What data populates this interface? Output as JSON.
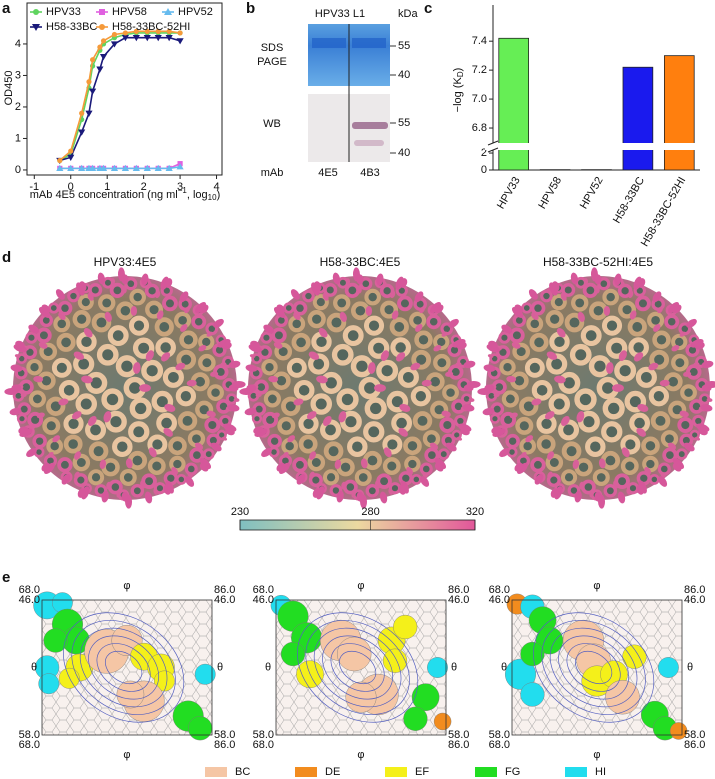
{
  "chart_data": [
    {
      "type": "line",
      "panel_label": "a",
      "xlabel": [
        "mAb 4E5 concentration (ng ml",
        "−1",
        ", log",
        "10",
        ")"
      ],
      "ylabel": "OD450",
      "x": [
        -0.3,
        0,
        0.3,
        0.5,
        0.6,
        0.8,
        0.9,
        1.2,
        1.5,
        1.8,
        2.1,
        2.4,
        2.7,
        3.0
      ],
      "xlim": [
        -1.2,
        4.15
      ],
      "xticks": [
        -1,
        0,
        1,
        2,
        3,
        4
      ],
      "ylim": [
        -0.16,
        5.3
      ],
      "yticks": [
        0,
        1,
        2,
        3,
        4
      ],
      "series": [
        {
          "name": "HPV33",
          "color": "#5fd45f",
          "marker": "circle",
          "values": [
            0.3,
            0.5,
            1.6,
            2.6,
            3.3,
            3.8,
            4.0,
            4.2,
            4.3,
            4.35,
            4.35,
            4.35,
            4.35,
            4.35
          ]
        },
        {
          "name": "HPV58",
          "color": "#e060e0",
          "marker": "square",
          "values": [
            0.05,
            0.05,
            0.05,
            0.05,
            0.05,
            0.05,
            0.05,
            0.05,
            0.05,
            0.05,
            0.05,
            0.05,
            0.05,
            0.2
          ]
        },
        {
          "name": "HPV52",
          "color": "#66bbee",
          "marker": "triangle",
          "values": [
            0.05,
            0.05,
            0.05,
            0.05,
            0.05,
            0.05,
            0.05,
            0.05,
            0.05,
            0.05,
            0.05,
            0.05,
            0.05,
            0.1
          ]
        },
        {
          "name": "H58-33BC",
          "color": "#1a1a7a",
          "marker": "triangle-down",
          "values": [
            0.3,
            0.4,
            1.2,
            1.8,
            2.5,
            3.2,
            3.6,
            4.0,
            4.2,
            4.2,
            4.2,
            4.2,
            4.2,
            4.1
          ]
        },
        {
          "name": "H58-33BC-52HI",
          "color": "#f59a3a",
          "marker": "circle",
          "values": [
            0.3,
            0.6,
            1.8,
            2.8,
            3.5,
            3.9,
            4.1,
            4.3,
            4.35,
            4.4,
            4.4,
            4.4,
            4.4,
            4.35
          ]
        }
      ]
    },
    {
      "type": "bar",
      "panel_label": "c",
      "ylabel": [
        "−log (K",
        "D",
        ")"
      ],
      "categories": [
        "HPV33",
        "HPV58",
        "HPV52",
        "H58-33BC",
        "H58-33BC-52HI"
      ],
      "values": [
        7.42,
        0.04,
        0.04,
        7.22,
        7.3
      ],
      "colors": [
        "#66ee55",
        "#e65ce6",
        "#55bbee",
        "#1a1aee",
        "#ff7f0e"
      ],
      "ylim": [
        0,
        7.65
      ],
      "axis_break": [
        2.3,
        6.7
      ],
      "yticks": [
        0,
        2,
        6.8,
        {
          "value": 7,
          "label": "7.0"
        },
        7.2,
        7.4
      ]
    }
  ],
  "panels": {
    "b": {
      "letter": "b",
      "title": "HPV33 L1",
      "unit": "kDa",
      "sds": [
        "SDS",
        "PAGE"
      ],
      "wb": "WB",
      "sds_markers": [
        55,
        40
      ],
      "wb_markers": [
        55,
        40
      ],
      "lane_label": "mAb",
      "lanes": [
        "4E5",
        "4B3"
      ]
    },
    "d": {
      "letter": "d",
      "titles": [
        "HPV33:4E5",
        "H58-33BC:4E5",
        "H58-33BC-52HI:4E5"
      ],
      "colorbar": {
        "ticks": [
          230,
          280,
          320
        ]
      }
    },
    "e": {
      "letter": "e",
      "axes": {
        "phi": "φ",
        "theta": "θ",
        "top_left": [
          "68.0",
          "46.0"
        ],
        "top_right": [
          "86.0",
          "46.0"
        ],
        "bottom_left": [
          "58.0",
          "68.0"
        ],
        "bottom_right": [
          "58.0",
          "86.0"
        ]
      },
      "legend": [
        {
          "name": "BC",
          "color": "#f5c6a5"
        },
        {
          "name": "DE",
          "color": "#f28c1e"
        },
        {
          "name": "EF",
          "color": "#f4f01a"
        },
        {
          "name": "FG",
          "color": "#22dd22"
        },
        {
          "name": "HI",
          "color": "#22ddee"
        }
      ]
    }
  }
}
